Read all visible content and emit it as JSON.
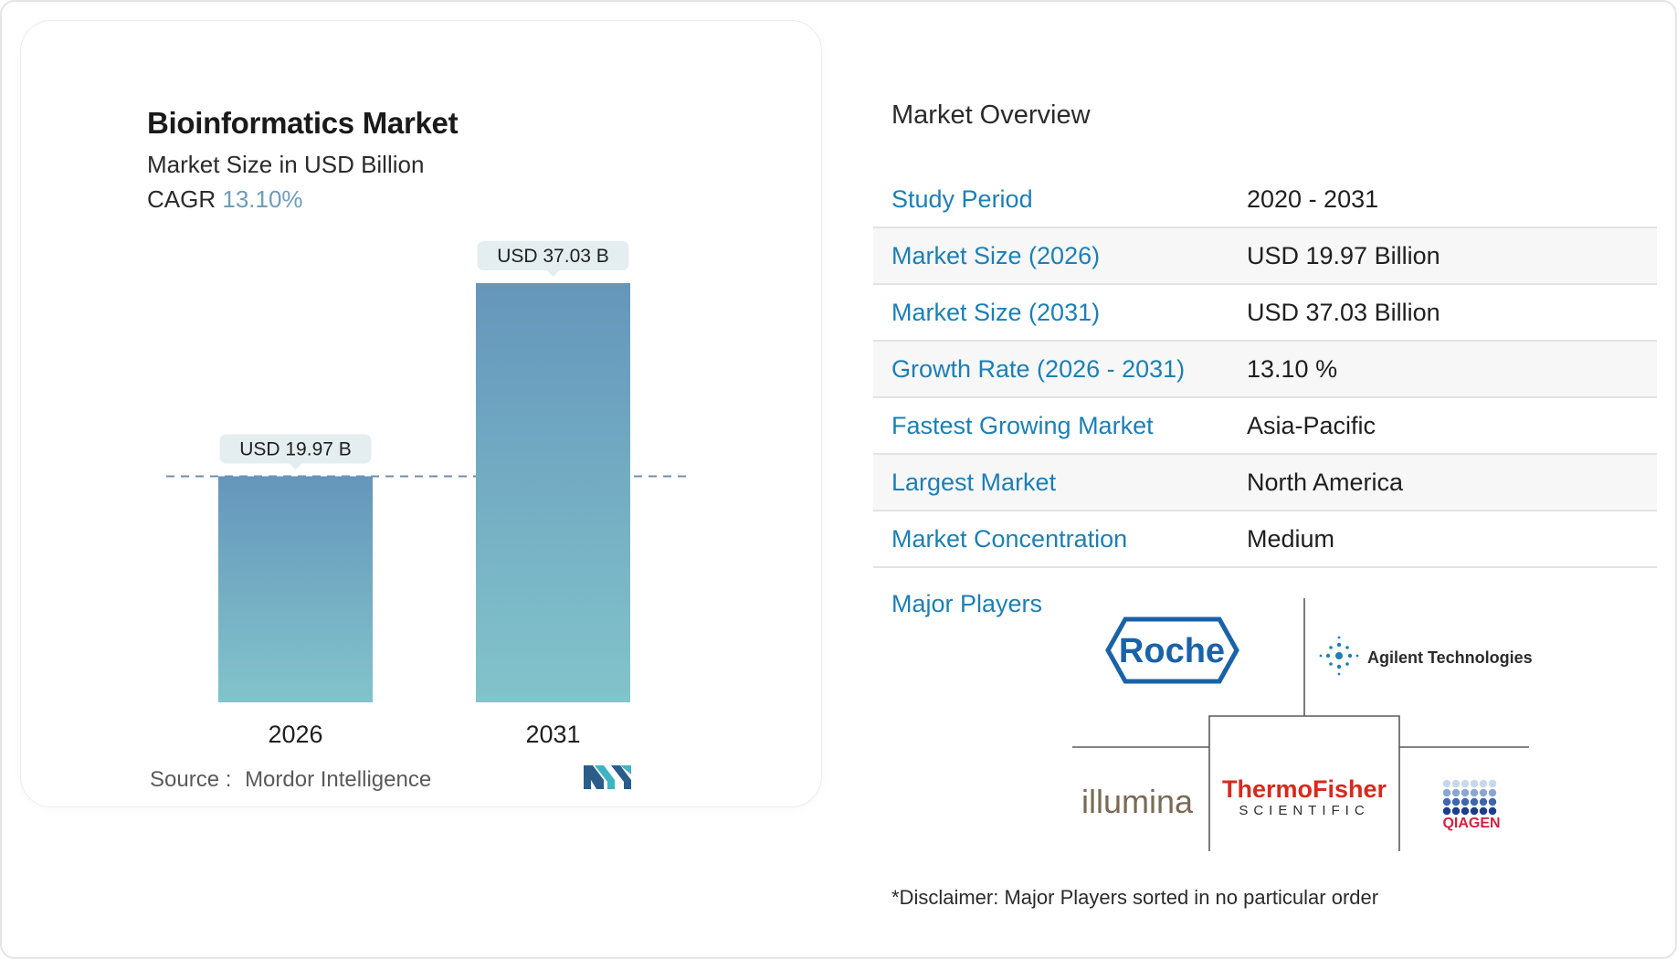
{
  "chart": {
    "title": "Bioinformatics Market",
    "subtitle": "Market Size in USD Billion",
    "cagr_label": "CAGR",
    "cagr_value": "13.10%",
    "source_label": "Source :",
    "source_value": "Mordor Intelligence"
  },
  "chart_data": {
    "type": "bar",
    "title": "Bioinformatics Market",
    "subtitle": "Market Size in USD Billion",
    "categories": [
      "2026",
      "2031"
    ],
    "values": [
      19.97,
      37.03
    ],
    "data_labels": [
      "USD 19.97 B",
      "USD 37.03 B"
    ],
    "ylim": [
      0,
      37.03
    ],
    "grid": false,
    "reference_line": 19.97,
    "colors": {
      "bar_top": "#6596bb",
      "bar_bottom": "#82c4cb",
      "label_bg": "#e4eef0",
      "dash": "#6f8fa8"
    }
  },
  "overview": {
    "title": "Market Overview",
    "rows": [
      {
        "label": "Study Period",
        "value": "2020 - 2031"
      },
      {
        "label": "Market Size (2026)",
        "value": "USD 19.97 Billion"
      },
      {
        "label": "Market Size (2031)",
        "value": "USD 37.03 Billion"
      },
      {
        "label": "Growth Rate (2026 - 2031)",
        "value": "13.10 %"
      },
      {
        "label": "Fastest Growing Market",
        "value": "Asia-Pacific"
      },
      {
        "label": "Largest Market",
        "value": "North America"
      },
      {
        "label": "Market Concentration",
        "value": "Medium"
      }
    ],
    "major_players_label": "Major Players",
    "players": {
      "roche": "Roche",
      "agilent": "Agilent Technologies",
      "illumina": "illumina",
      "thermo_1": "ThermoFisher",
      "thermo_2": "SCIENTIFIC",
      "qiagen": "QIAGEN"
    },
    "disclaimer": "*Disclaimer: Major Players sorted in no particular order"
  },
  "colors": {
    "accent_blue": "#1c7fb5",
    "cagr": "#6f9bbd"
  }
}
